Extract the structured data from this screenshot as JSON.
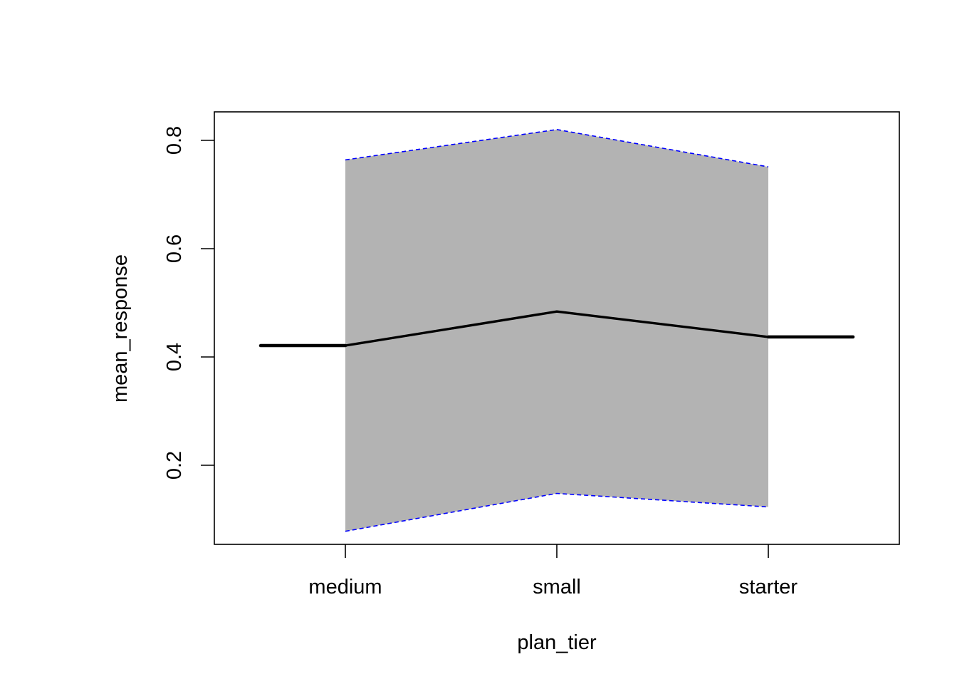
{
  "chart_data": {
    "type": "line",
    "title": "",
    "xlabel": "plan_tier",
    "ylabel": "mean_response",
    "categories": [
      "medium",
      "small",
      "starter"
    ],
    "series": [
      {
        "values": [
          0.421,
          0.484,
          0.437
        ]
      }
    ],
    "confidence_band": {
      "lower": [
        0.078,
        0.148,
        0.123
      ],
      "upper": [
        0.764,
        0.82,
        0.751
      ],
      "fill_color": "#b3b3b3",
      "edge_color": "#0000ff",
      "edge_style": "dashed"
    },
    "reference_segments": {
      "left_value": 0.421,
      "right_value": 0.437
    },
    "ylim": [
      0.05,
      0.85
    ],
    "yticks": [
      0.2,
      0.4,
      0.6,
      0.8
    ],
    "ytick_labels": [
      "0.2",
      "0.4",
      "0.6",
      "0.8"
    ],
    "grid": false,
    "legend": "none",
    "line_color": "#000000"
  }
}
